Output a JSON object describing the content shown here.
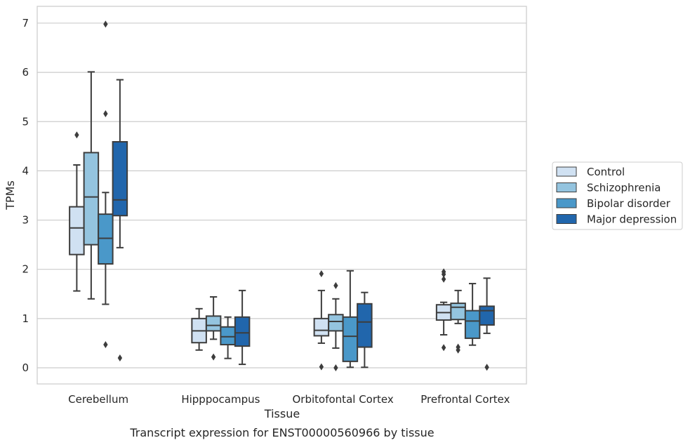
{
  "chart_data": {
    "type": "box",
    "title": "Transcript expression for ENST00000560966 by tissue",
    "xlabel": "Tissue",
    "ylabel": "TPMs",
    "ylim": [
      -0.33,
      7.35
    ],
    "yticks": [
      0,
      1,
      2,
      3,
      4,
      5,
      6,
      7
    ],
    "grid": true,
    "legend_position": "right",
    "categories": [
      "Cerebellum",
      "Hipppocampus",
      "Orbitofontal Cortex",
      "Prefrontal Cortex"
    ],
    "series": [
      {
        "name": "Control",
        "color": "#d0e1f2",
        "boxes": [
          {
            "whislo": 1.56,
            "q1": 2.3,
            "med": 2.84,
            "q3": 3.27,
            "whishi": 4.12,
            "fliers": [
              4.73
            ]
          },
          {
            "whislo": 0.36,
            "q1": 0.51,
            "med": 0.75,
            "q3": 1.0,
            "whishi": 1.2,
            "fliers": []
          },
          {
            "whislo": 0.5,
            "q1": 0.65,
            "med": 0.76,
            "q3": 1.0,
            "whishi": 1.57,
            "fliers": [
              1.91,
              0.02
            ]
          },
          {
            "whislo": 0.67,
            "q1": 0.97,
            "med": 1.12,
            "q3": 1.28,
            "whishi": 1.33,
            "fliers": [
              1.95,
              1.9,
              1.8,
              0.41
            ]
          }
        ]
      },
      {
        "name": "Schizophrenia",
        "color": "#94c4df",
        "boxes": [
          {
            "whislo": 1.4,
            "q1": 2.5,
            "med": 3.47,
            "q3": 4.37,
            "whishi": 6.01,
            "fliers": []
          },
          {
            "whislo": 0.58,
            "q1": 0.75,
            "med": 0.86,
            "q3": 1.05,
            "whishi": 1.44,
            "fliers": [
              0.22
            ]
          },
          {
            "whislo": 0.4,
            "q1": 0.75,
            "med": 0.94,
            "q3": 1.08,
            "whishi": 1.4,
            "fliers": [
              1.67,
              0.0
            ]
          },
          {
            "whislo": 0.9,
            "q1": 0.98,
            "med": 1.23,
            "q3": 1.31,
            "whishi": 1.57,
            "fliers": [
              0.42,
              0.36
            ]
          }
        ]
      },
      {
        "name": "Bipolar disorder",
        "color": "#4a98c9",
        "boxes": [
          {
            "whislo": 1.29,
            "q1": 2.11,
            "med": 2.63,
            "q3": 3.12,
            "whishi": 3.56,
            "fliers": [
              6.98,
              5.16,
              0.47
            ]
          },
          {
            "whislo": 0.19,
            "q1": 0.47,
            "med": 0.63,
            "q3": 0.83,
            "whishi": 1.03,
            "fliers": []
          },
          {
            "whislo": 0.01,
            "q1": 0.13,
            "med": 0.64,
            "q3": 1.03,
            "whishi": 1.97,
            "fliers": []
          },
          {
            "whislo": 0.46,
            "q1": 0.6,
            "med": 0.95,
            "q3": 1.16,
            "whishi": 1.71,
            "fliers": []
          }
        ]
      },
      {
        "name": "Major depression",
        "color": "#2166ac",
        "boxes": [
          {
            "whislo": 2.44,
            "q1": 3.09,
            "med": 3.41,
            "q3": 4.59,
            "whishi": 5.85,
            "fliers": [
              0.2
            ]
          },
          {
            "whislo": 0.07,
            "q1": 0.44,
            "med": 0.71,
            "q3": 1.03,
            "whishi": 1.57,
            "fliers": []
          },
          {
            "whislo": 0.01,
            "q1": 0.42,
            "med": 0.93,
            "q3": 1.3,
            "whishi": 1.53,
            "fliers": []
          },
          {
            "whislo": 0.7,
            "q1": 0.87,
            "med": 1.16,
            "q3": 1.25,
            "whishi": 1.82,
            "fliers": [
              0.01
            ]
          }
        ]
      }
    ]
  }
}
